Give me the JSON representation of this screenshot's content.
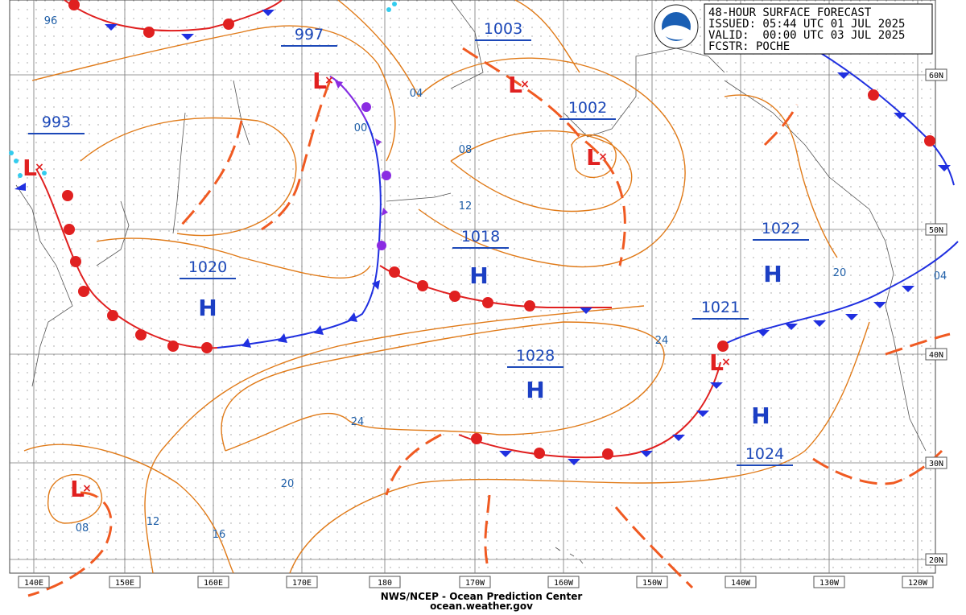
{
  "header": {
    "lines": [
      "48-HOUR SURFACE FORECAST",
      "ISSUED: 05:44 UTC 01 JUL 2025",
      "VALID:  00:00 UTC 03 JUL 2025",
      "FCSTR: POCHE"
    ]
  },
  "pressure_centers": [
    {
      "symbol": "H",
      "value": "1020"
    },
    {
      "symbol": "H",
      "value": "1018"
    },
    {
      "symbol": "H",
      "value": "1028"
    },
    {
      "symbol": "H",
      "value": "1022"
    },
    {
      "symbol": "H",
      "value": "1024"
    },
    {
      "symbol": "L",
      "value": "1021"
    },
    {
      "symbol": "L",
      "value": "997"
    },
    {
      "symbol": "L",
      "value": "1003"
    },
    {
      "symbol": "L",
      "value": "1002"
    },
    {
      "symbol": "L",
      "value": "993"
    },
    {
      "symbol": "L"
    }
  ],
  "isobar_labels": [
    "96",
    "04",
    "00",
    "08",
    "12",
    "20",
    "04",
    "24",
    "24",
    "20",
    "16",
    "12",
    "08"
  ],
  "lat_labels": [
    "60N",
    "50N",
    "40N",
    "30N",
    "20N"
  ],
  "lon_labels": [
    "140E",
    "150E",
    "160E",
    "170E",
    "180",
    "170W",
    "160W",
    "150W",
    "140W",
    "130W",
    "120W"
  ],
  "footer": [
    "NWS/NCEP - Ocean Prediction Center",
    "ocean.weather.gov"
  ]
}
